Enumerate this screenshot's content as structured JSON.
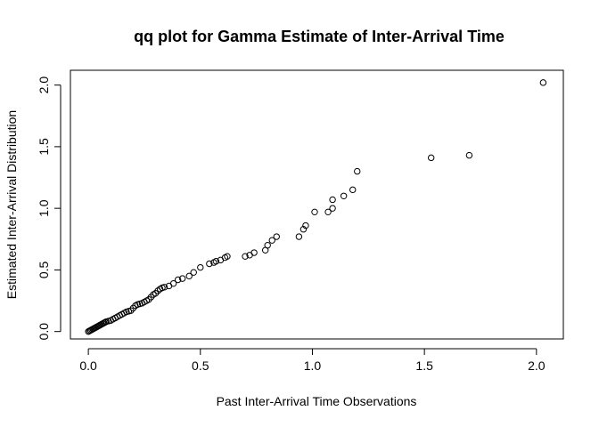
{
  "chart_data": {
    "type": "scatter",
    "title": "qq plot for Gamma Estimate of Inter-Arrival Time",
    "xlabel": "Past Inter-Arrival Time Observations",
    "ylabel": "Estimated Inter-Arrival Distribution",
    "xlim": [
      -0.08,
      2.12
    ],
    "ylim": [
      -0.06,
      2.12
    ],
    "xticks": [
      0.0,
      0.5,
      1.0,
      1.5,
      2.0
    ],
    "xtick_labels": [
      "0.0",
      "0.5",
      "1.0",
      "1.5",
      "2.0"
    ],
    "yticks": [
      0.0,
      0.5,
      1.0,
      1.5,
      2.0
    ],
    "ytick_labels": [
      "0.0",
      "0.5",
      "1.0",
      "1.5",
      "2.0"
    ],
    "grid": false,
    "marker": "open-circle",
    "points": [
      [
        0.0,
        0.0
      ],
      [
        0.005,
        0.005
      ],
      [
        0.01,
        0.01
      ],
      [
        0.015,
        0.015
      ],
      [
        0.02,
        0.02
      ],
      [
        0.025,
        0.025
      ],
      [
        0.03,
        0.03
      ],
      [
        0.035,
        0.035
      ],
      [
        0.04,
        0.04
      ],
      [
        0.045,
        0.045
      ],
      [
        0.05,
        0.05
      ],
      [
        0.055,
        0.055
      ],
      [
        0.06,
        0.06
      ],
      [
        0.065,
        0.065
      ],
      [
        0.07,
        0.07
      ],
      [
        0.075,
        0.075
      ],
      [
        0.08,
        0.08
      ],
      [
        0.09,
        0.085
      ],
      [
        0.1,
        0.09
      ],
      [
        0.11,
        0.1
      ],
      [
        0.12,
        0.11
      ],
      [
        0.13,
        0.12
      ],
      [
        0.14,
        0.13
      ],
      [
        0.15,
        0.14
      ],
      [
        0.16,
        0.15
      ],
      [
        0.17,
        0.16
      ],
      [
        0.18,
        0.165
      ],
      [
        0.19,
        0.17
      ],
      [
        0.2,
        0.19
      ],
      [
        0.21,
        0.21
      ],
      [
        0.22,
        0.22
      ],
      [
        0.23,
        0.225
      ],
      [
        0.24,
        0.23
      ],
      [
        0.25,
        0.24
      ],
      [
        0.26,
        0.25
      ],
      [
        0.27,
        0.26
      ],
      [
        0.28,
        0.28
      ],
      [
        0.29,
        0.3
      ],
      [
        0.3,
        0.31
      ],
      [
        0.31,
        0.33
      ],
      [
        0.32,
        0.345
      ],
      [
        0.33,
        0.355
      ],
      [
        0.34,
        0.36
      ],
      [
        0.36,
        0.37
      ],
      [
        0.38,
        0.39
      ],
      [
        0.4,
        0.42
      ],
      [
        0.42,
        0.43
      ],
      [
        0.45,
        0.45
      ],
      [
        0.47,
        0.48
      ],
      [
        0.5,
        0.52
      ],
      [
        0.54,
        0.55
      ],
      [
        0.56,
        0.56
      ],
      [
        0.57,
        0.57
      ],
      [
        0.59,
        0.58
      ],
      [
        0.61,
        0.6
      ],
      [
        0.62,
        0.61
      ],
      [
        0.7,
        0.61
      ],
      [
        0.72,
        0.62
      ],
      [
        0.74,
        0.64
      ],
      [
        0.79,
        0.66
      ],
      [
        0.8,
        0.7
      ],
      [
        0.82,
        0.74
      ],
      [
        0.84,
        0.77
      ],
      [
        0.94,
        0.77
      ],
      [
        0.96,
        0.83
      ],
      [
        0.97,
        0.86
      ],
      [
        1.01,
        0.97
      ],
      [
        1.07,
        0.97
      ],
      [
        1.09,
        1.0
      ],
      [
        1.09,
        1.07
      ],
      [
        1.14,
        1.1
      ],
      [
        1.18,
        1.15
      ],
      [
        1.2,
        1.3
      ],
      [
        1.53,
        1.41
      ],
      [
        1.7,
        1.43
      ],
      [
        2.03,
        2.02
      ]
    ]
  }
}
